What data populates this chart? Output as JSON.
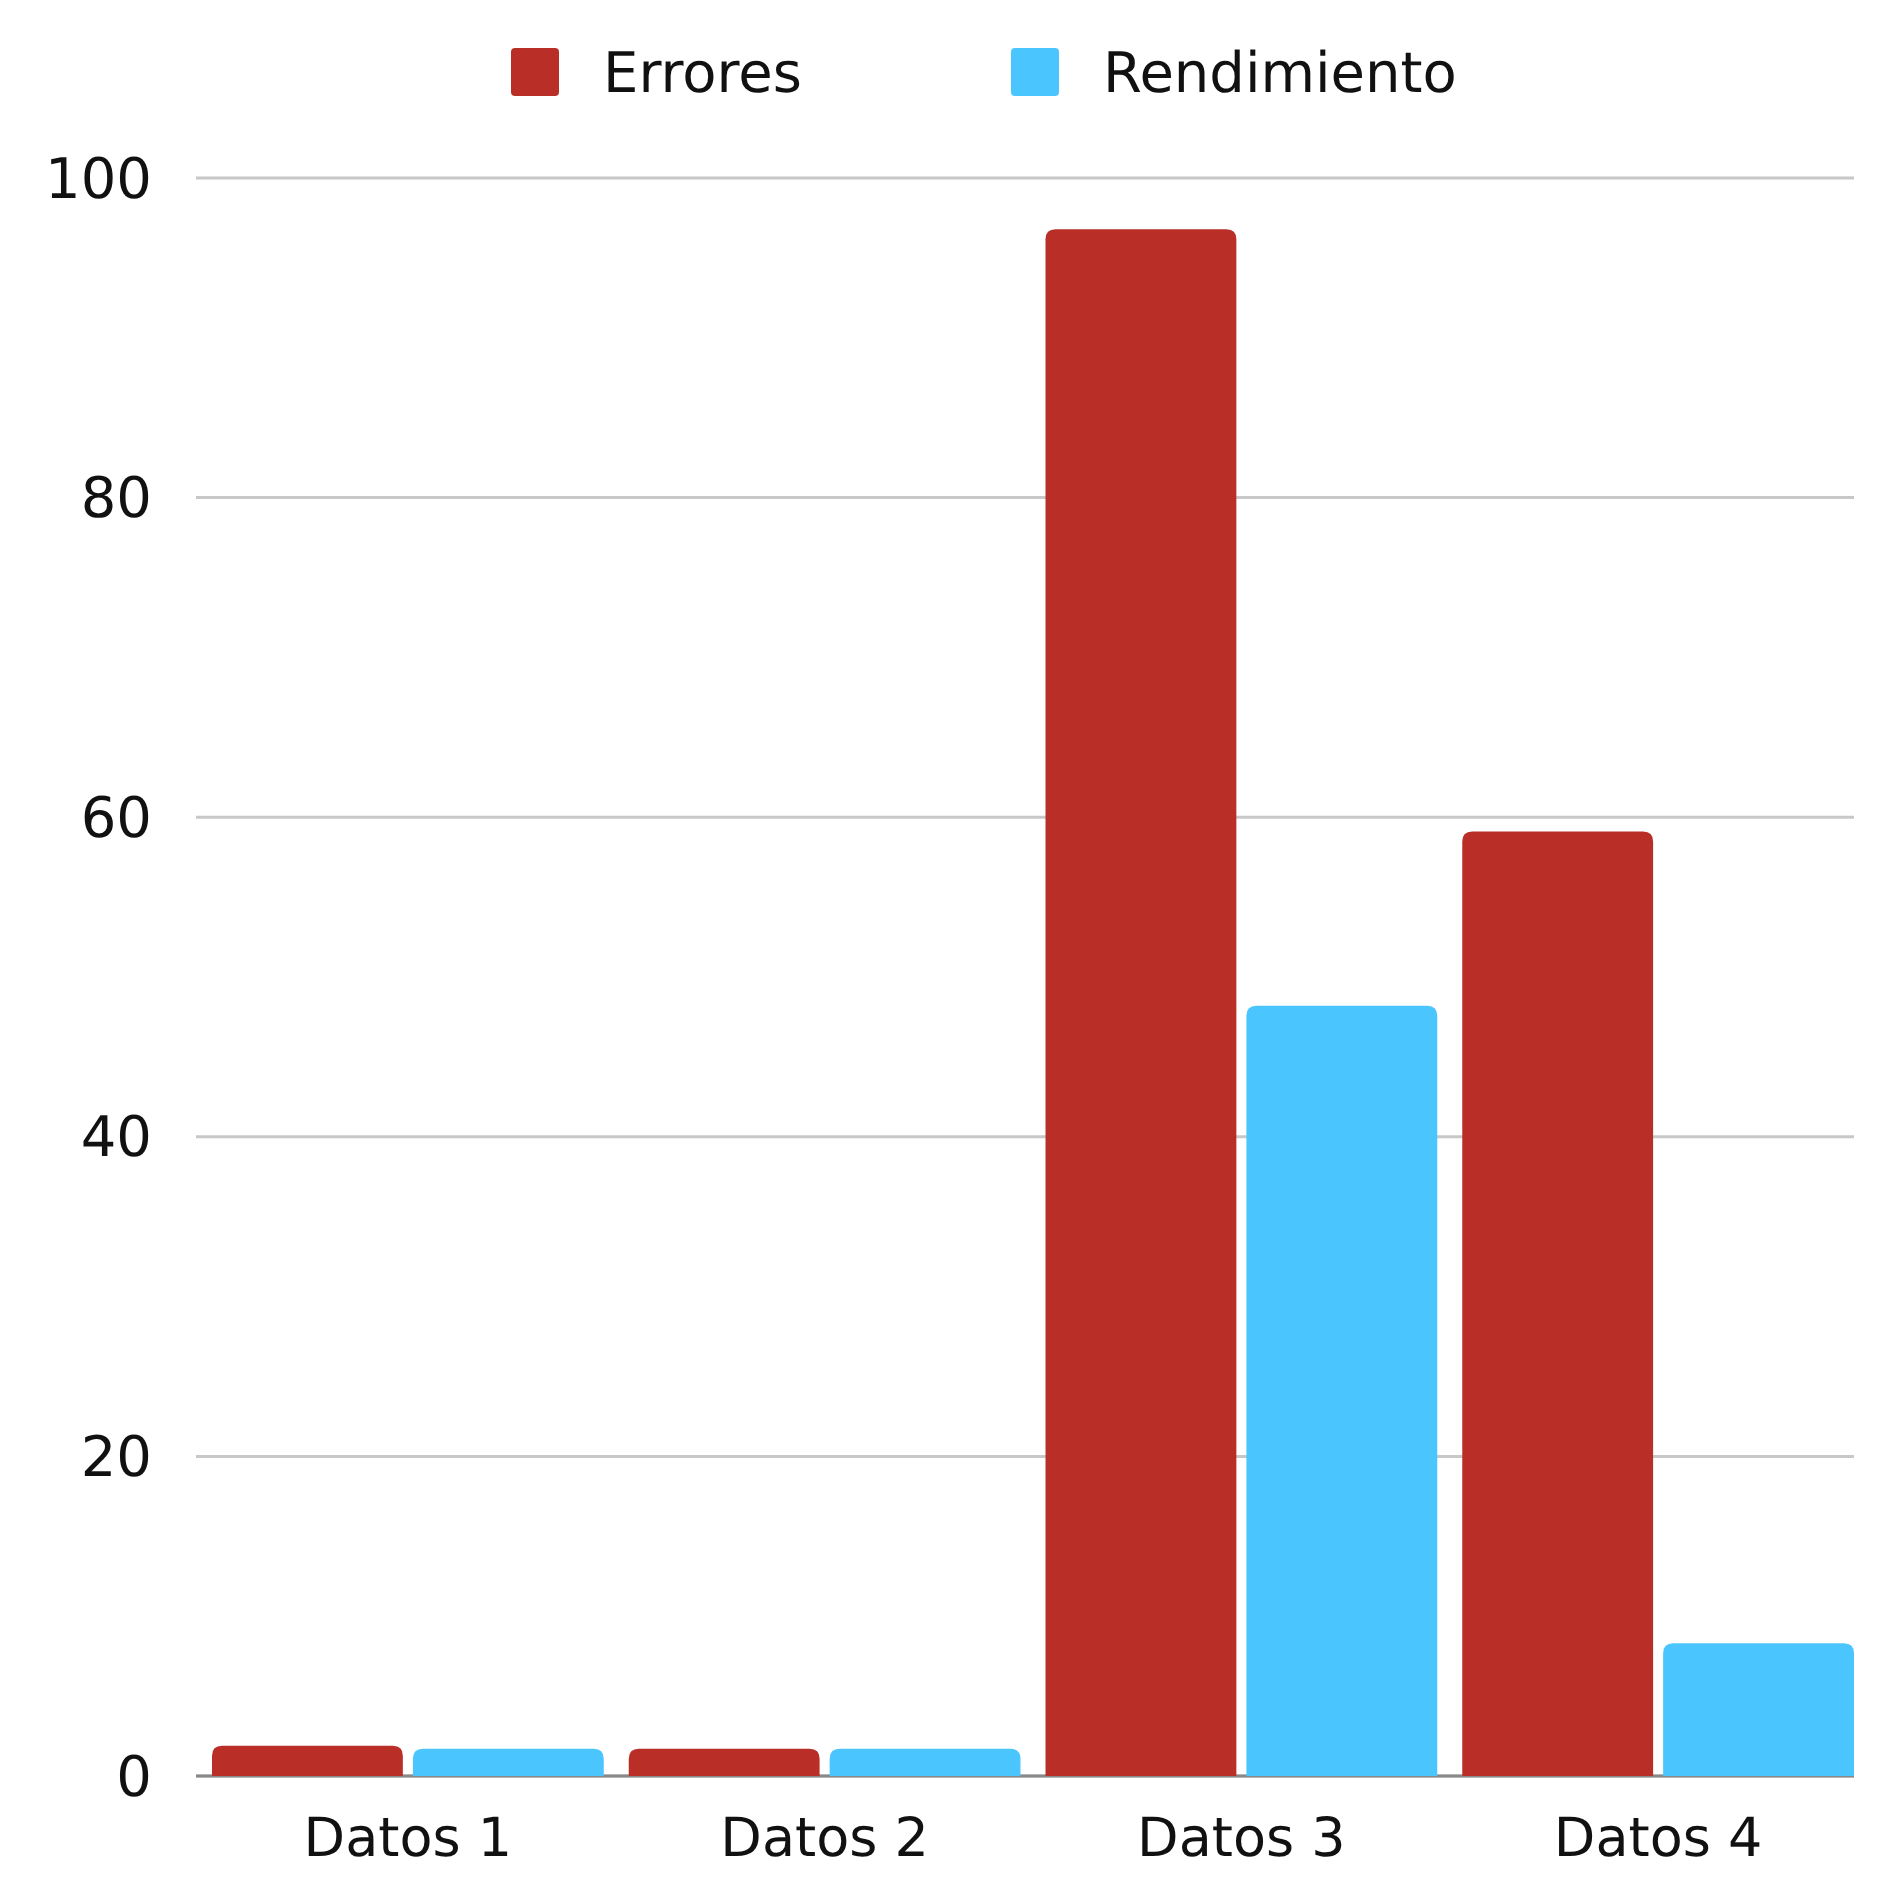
{
  "chart_data": {
    "type": "bar",
    "categories": [
      "Datos 1",
      "Datos 2",
      "Datos 3",
      "Datos 4"
    ],
    "series": [
      {
        "name": "Errores",
        "color": "#b92f28",
        "values": [
          1.9,
          1.7,
          96.8,
          59.1
        ]
      },
      {
        "name": "Rendimiento",
        "color": "#4bc5fe",
        "values": [
          1.7,
          1.7,
          48.2,
          8.3
        ]
      }
    ],
    "ylim": [
      0,
      100
    ],
    "yticks": [
      0,
      20,
      40,
      60,
      80,
      100
    ],
    "grid": "y",
    "legend": "top"
  }
}
